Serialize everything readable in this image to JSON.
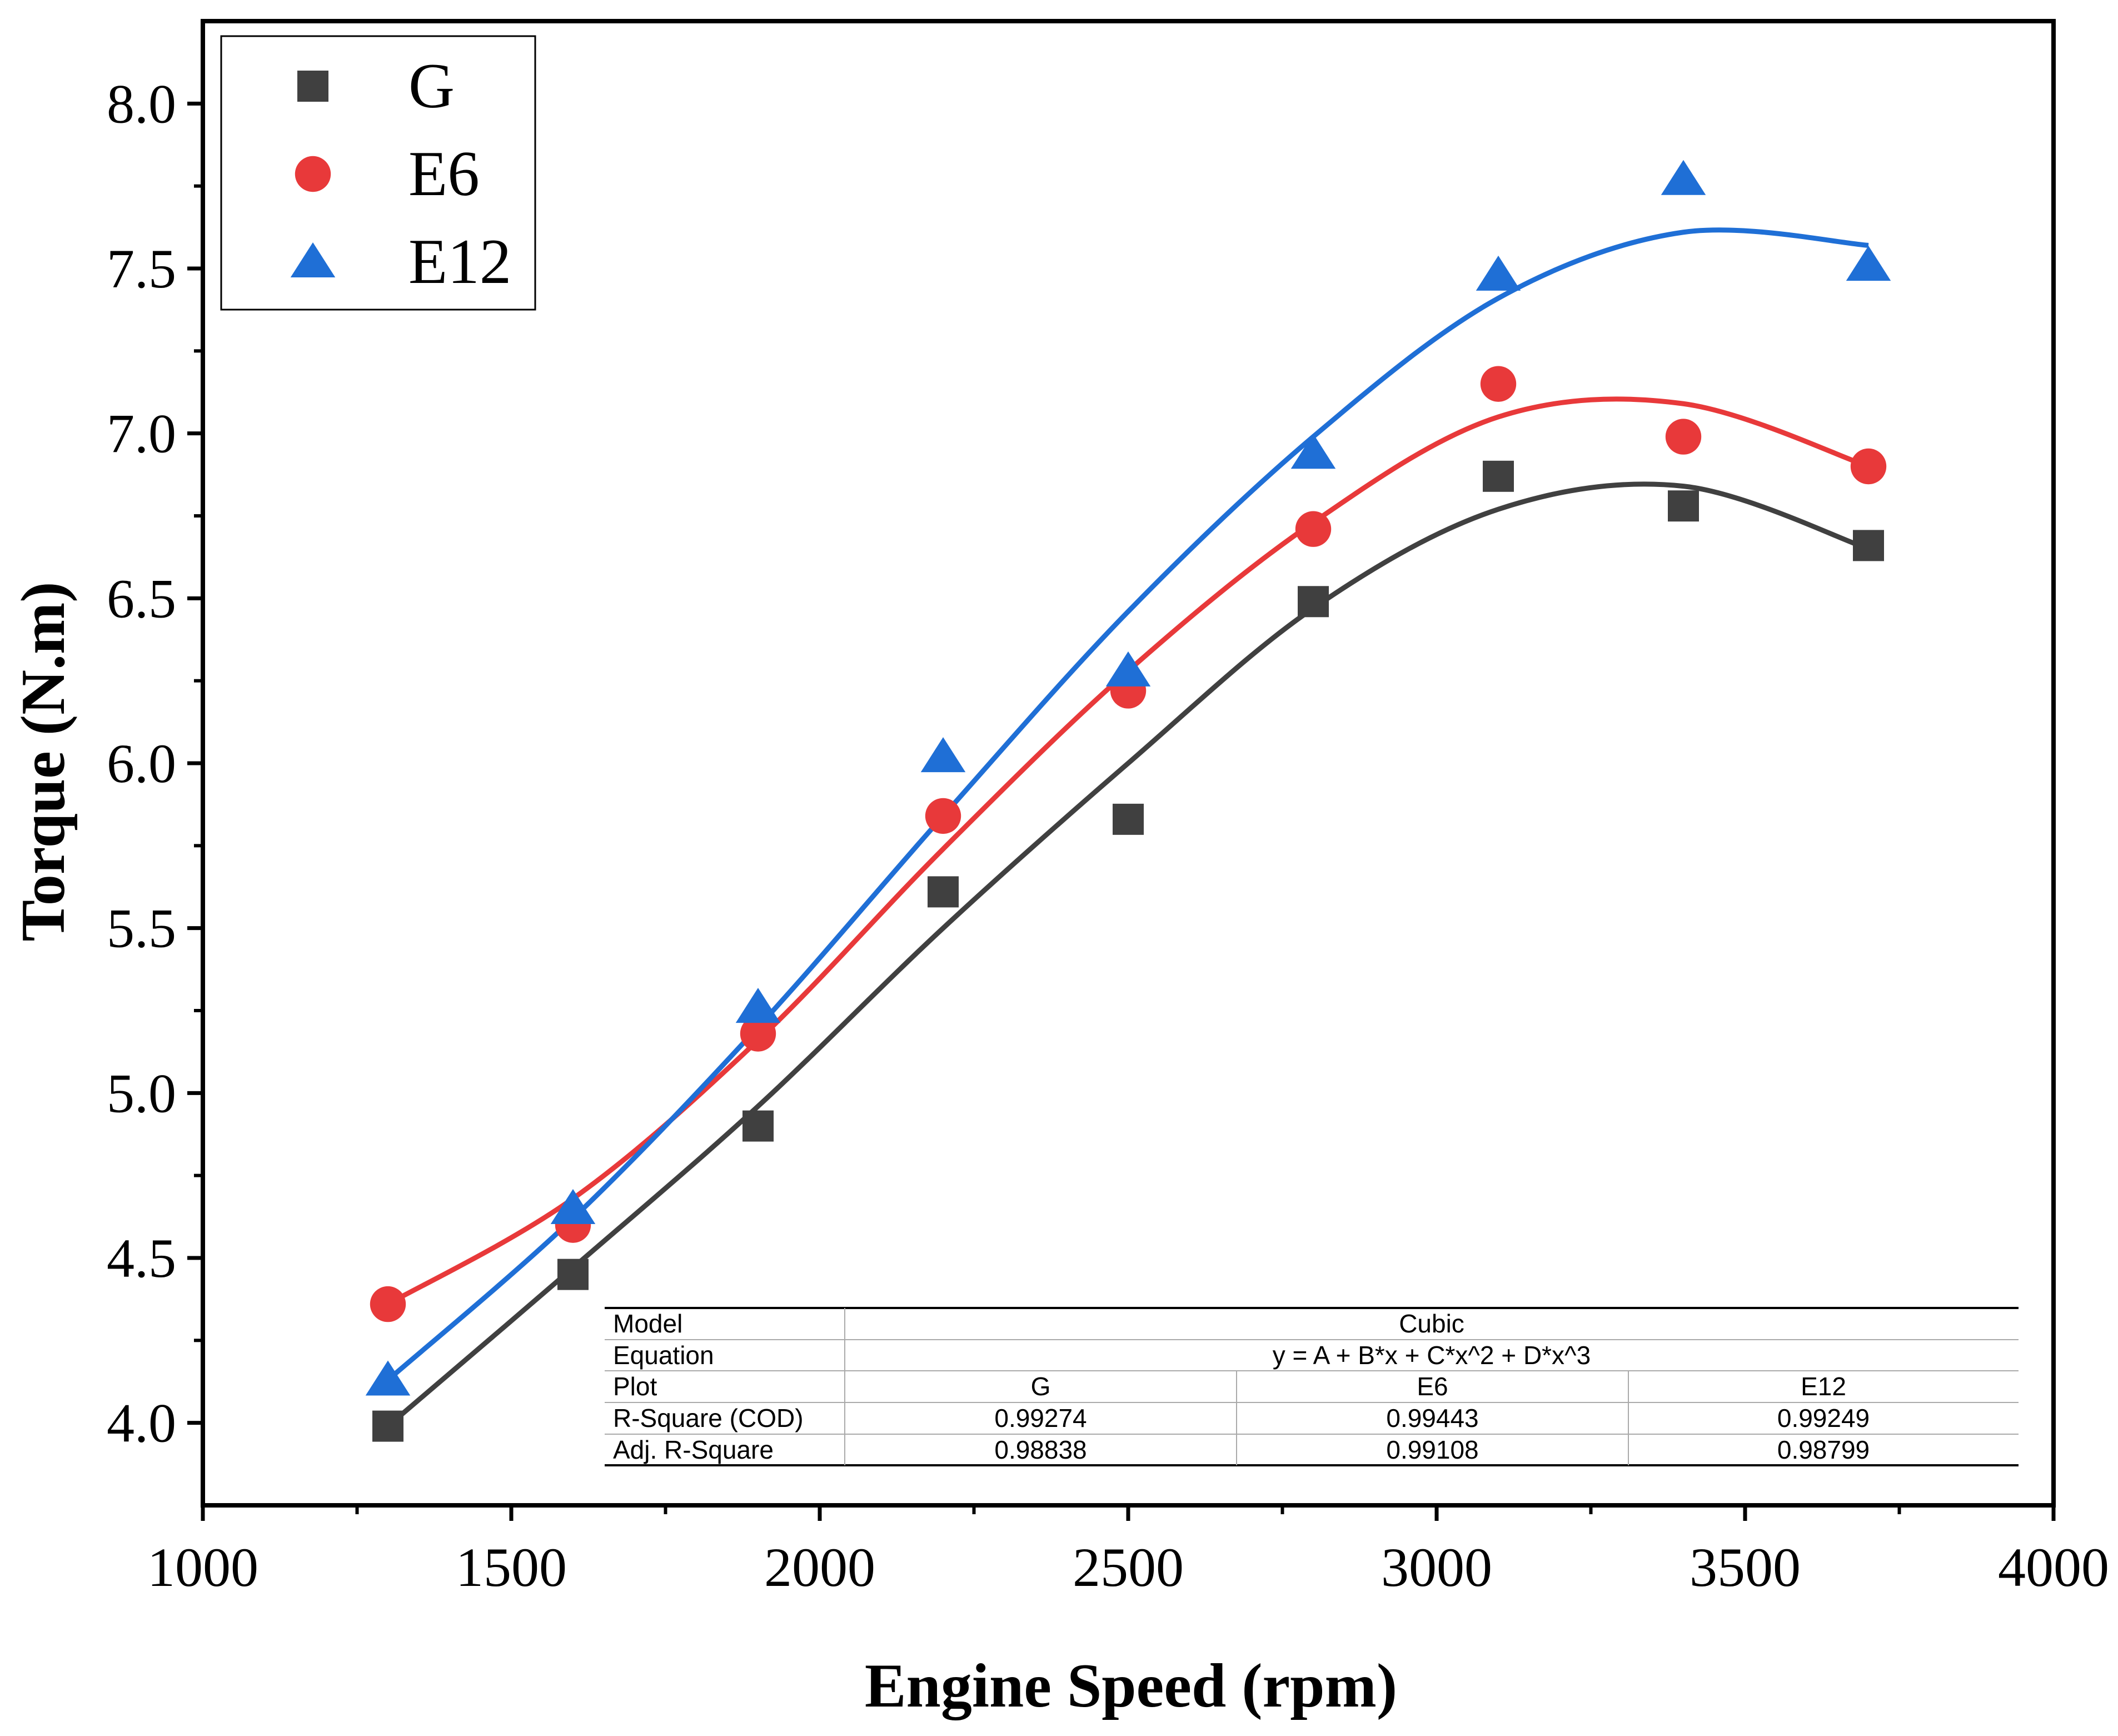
{
  "chart_data": {
    "type": "scatter",
    "title": "",
    "xlabel": "Engine Speed (rpm)",
    "ylabel": "Torque (N.m)",
    "xlim": [
      1000,
      4000
    ],
    "ylim": [
      3.75,
      8.25
    ],
    "grid": false,
    "legend_position": "top-left",
    "x_ticks": [
      1000,
      1500,
      2000,
      2500,
      3000,
      3500,
      4000
    ],
    "x_tick_labels": [
      "1000",
      "1500",
      "2000",
      "2500",
      "3000",
      "3500",
      "4000"
    ],
    "y_ticks": [
      4.0,
      4.5,
      5.0,
      5.5,
      6.0,
      6.5,
      7.0,
      7.5,
      8.0
    ],
    "y_tick_labels": [
      "4.0",
      "4.5",
      "5.0",
      "5.5",
      "6.0",
      "6.5",
      "7.0",
      "7.5",
      "8.0"
    ],
    "x": [
      1300,
      1600,
      1900,
      2200,
      2500,
      2800,
      3100,
      3400,
      3700
    ],
    "series": [
      {
        "name": "G",
        "marker": "square",
        "color": "#404040",
        "values": [
          3.99,
          4.45,
          4.9,
          5.61,
          5.83,
          6.49,
          6.87,
          6.78,
          6.66
        ],
        "fit": [
          1300,
          3.99,
          4.47,
          4.96,
          5.5,
          6.0,
          6.47,
          6.77,
          6.84,
          6.65
        ]
      },
      {
        "name": "E6",
        "marker": "circle",
        "color": "#e8393a",
        "values": [
          4.36,
          4.6,
          5.18,
          5.84,
          6.22,
          6.71,
          7.15,
          6.99,
          6.9
        ],
        "fit": [
          1300,
          4.36,
          4.68,
          5.16,
          5.74,
          6.28,
          6.73,
          7.05,
          7.09,
          6.9
        ]
      },
      {
        "name": "E12",
        "marker": "triangle",
        "color": "#1f6fd6",
        "values": [
          4.13,
          4.65,
          5.26,
          6.02,
          6.28,
          6.94,
          7.48,
          7.77,
          7.51
        ],
        "fit": [
          1300,
          4.13,
          4.62,
          5.2,
          5.84,
          6.46,
          6.99,
          7.41,
          7.61,
          7.57
        ]
      }
    ],
    "fit_table": {
      "rows": [
        [
          "Model",
          "Cubic"
        ],
        [
          "Equation",
          "y = A + B*x + C*x^2 + D*x^3"
        ],
        [
          "Plot",
          "G",
          "E6",
          "E12"
        ],
        [
          "R-Square (COD)",
          "0.99274",
          "0.99443",
          "0.99249"
        ],
        [
          "Adj. R-Square",
          "0.98838",
          "0.99108",
          "0.98799"
        ]
      ]
    }
  }
}
